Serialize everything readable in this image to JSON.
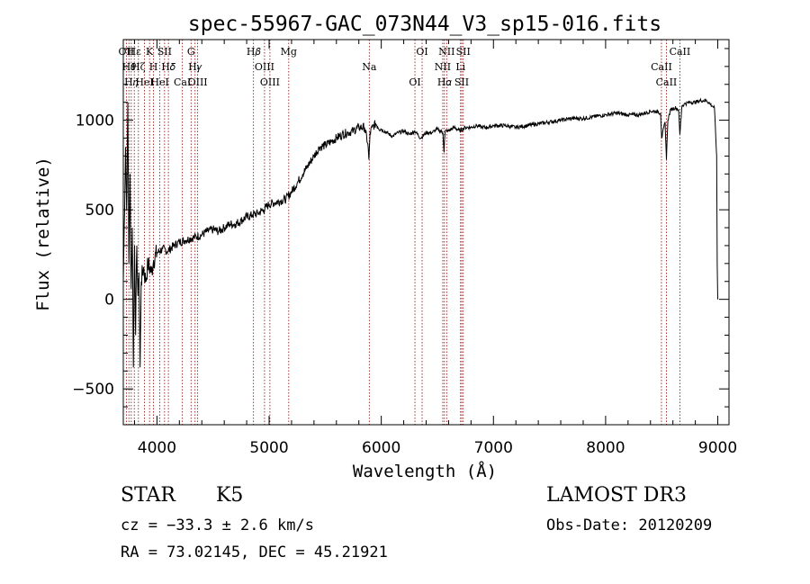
{
  "chart_data": {
    "type": "line",
    "title": "spec-55967-GAC_073N44_V3_sp15-016.fits",
    "xlabel": "Wavelength (Å)",
    "ylabel": "Flux (relative)",
    "xlim": [
      3700,
      9100
    ],
    "ylim": [
      -700,
      1450
    ],
    "xticks": [
      4000,
      5000,
      6000,
      7000,
      8000,
      9000
    ],
    "xtick_labels": [
      "4000",
      "5000",
      "6000",
      "7000",
      "8000",
      "9000"
    ],
    "yticks": [
      -500,
      0,
      500,
      1000
    ],
    "ytick_labels": [
      "−500",
      "0",
      "500",
      "1000"
    ],
    "series": [
      {
        "name": "spectrum",
        "x": [
          3700,
          3720,
          3730,
          3740,
          3750,
          3760,
          3770,
          3780,
          3790,
          3800,
          3810,
          3820,
          3830,
          3840,
          3850,
          3860,
          3880,
          3900,
          3920,
          3950,
          3970,
          4000,
          4050,
          4100,
          4150,
          4200,
          4250,
          4300,
          4350,
          4400,
          4450,
          4500,
          4550,
          4600,
          4650,
          4700,
          4750,
          4800,
          4850,
          4900,
          4950,
          5000,
          5050,
          5100,
          5150,
          5200,
          5250,
          5300,
          5350,
          5400,
          5450,
          5500,
          5550,
          5600,
          5650,
          5700,
          5750,
          5800,
          5850,
          5880,
          5890,
          5900,
          5920,
          5950,
          6000,
          6050,
          6100,
          6150,
          6200,
          6250,
          6300,
          6350,
          6400,
          6450,
          6500,
          6550,
          6560,
          6563,
          6570,
          6600,
          6650,
          6700,
          6750,
          6800,
          6850,
          6900,
          6950,
          7000,
          7100,
          7200,
          7300,
          7400,
          7500,
          7600,
          7700,
          7800,
          7900,
          8000,
          8100,
          8200,
          8300,
          8400,
          8450,
          8490,
          8500,
          8530,
          8542,
          8555,
          8580,
          8620,
          8650,
          8662,
          8680,
          8700,
          8750,
          8800,
          8850,
          8900,
          8950,
          8970,
          8990,
          8995,
          9000
        ],
        "y": [
          100,
          850,
          500,
          1100,
          200,
          700,
          60,
          400,
          -380,
          300,
          -200,
          300,
          20,
          150,
          -380,
          100,
          180,
          100,
          200,
          150,
          220,
          260,
          280,
          270,
          300,
          320,
          330,
          340,
          350,
          360,
          380,
          390,
          380,
          400,
          420,
          420,
          440,
          460,
          470,
          480,
          500,
          530,
          540,
          550,
          560,
          600,
          650,
          700,
          750,
          800,
          850,
          860,
          880,
          900,
          920,
          930,
          940,
          960,
          960,
          870,
          780,
          930,
          960,
          980,
          950,
          930,
          910,
          930,
          940,
          920,
          940,
          900,
          930,
          930,
          950,
          930,
          820,
          880,
          940,
          940,
          960,
          940,
          960,
          960,
          970,
          960,
          960,
          970,
          970,
          960,
          970,
          980,
          990,
          1000,
          1010,
          1010,
          1020,
          1030,
          1040,
          1030,
          1030,
          1050,
          1050,
          1040,
          900,
          990,
          780,
          1000,
          1060,
          1070,
          1060,
          920,
          1080,
          1090,
          1100,
          1100,
          1110,
          1110,
          1080,
          1070,
          800,
          200,
          0
        ]
      }
    ],
    "lines": {
      "x": [
        3727,
        3750,
        3771,
        3798,
        3835,
        3889,
        3934,
        3969,
        4026,
        4068,
        4102,
        4227,
        4304,
        4340,
        4363,
        4861,
        4959,
        5007,
        5175,
        5893,
        6300,
        6364,
        6548,
        6563,
        6583,
        6707,
        6717,
        6731,
        8498,
        8542,
        8662
      ],
      "labels": [
        "OII",
        "H𝜃",
        "H𝜂",
        "Hε",
        "Hζ",
        "HeI",
        "K",
        "H",
        "HeI",
        "SII",
        "H𝛿",
        "CaI",
        "G",
        "H𝛾",
        "OIII",
        "H𝛽",
        "OIII",
        "OIII",
        "Mg",
        "Na",
        "OI",
        "OI",
        "NII",
        "H𝛼",
        "NII",
        "Li",
        "SII",
        "SII",
        "CaII",
        "CaII",
        "CaII"
      ]
    },
    "line_color": "#8b0000"
  },
  "annotations": {
    "class_label": "STAR",
    "subclass_label": "K5",
    "redshift_label": "cz = −33.3 ± 2.6 km/s",
    "coords_label": "RA =  73.02145, DEC =  45.21921",
    "survey_label": "LAMOST DR3",
    "obs_date_label": "Obs-Date: 20120209"
  }
}
